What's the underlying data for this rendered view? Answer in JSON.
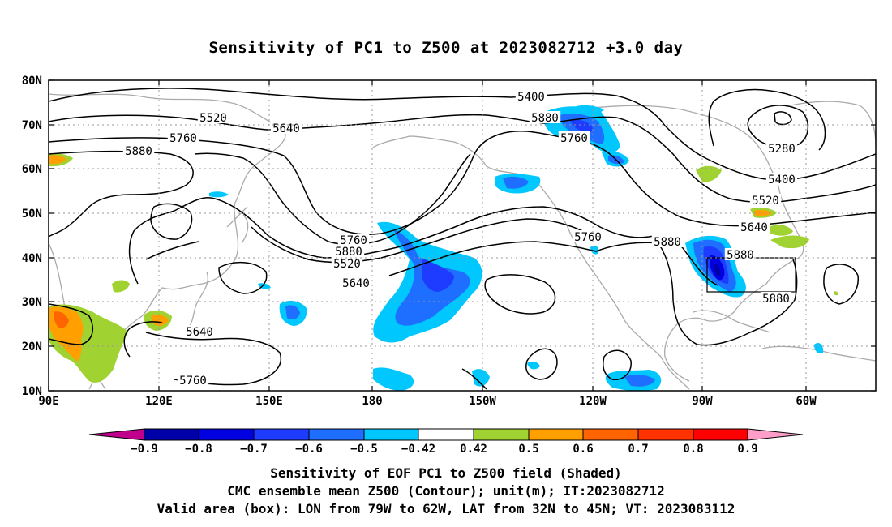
{
  "title": "Sensitivity of PC1 to Z500 at 2023082712 +3.0 day",
  "lat_labels": [
    "80N",
    "70N",
    "60N",
    "50N",
    "40N",
    "30N",
    "20N",
    "10N"
  ],
  "lon_labels": [
    "90E",
    "120E",
    "150E",
    "180",
    "150W",
    "120W",
    "90W",
    "60W"
  ],
  "contour_labels": [
    "5400",
    "5520",
    "5640",
    "5760",
    "5880",
    "5280",
    "5400",
    "5520",
    "5640",
    "5760",
    "5880",
    "5520",
    "5640",
    "5760",
    "5880",
    "5760",
    "5880",
    "5880",
    "5880",
    "5640",
    "5760"
  ],
  "colorbar": {
    "labels": [
      "-0.9",
      "-0.8",
      "-0.7",
      "-0.6",
      "-0.5",
      "-0.42",
      "0.42",
      "0.5",
      "0.6",
      "0.7",
      "0.8",
      "0.9"
    ],
    "colors": [
      "#c0008c",
      "#0000a8",
      "#0000e0",
      "#1e3cff",
      "#1e6eff",
      "#00c8ff",
      "#ffffff",
      "#a0d232",
      "#ffa000",
      "#ff6400",
      "#ff3200",
      "#ff0000",
      "#ff9ec8"
    ]
  },
  "footer": [
    "Sensitivity of EOF PC1 to Z500 field (Shaded)",
    "CMC ensemble mean Z500 (Contour); unit(m); IT:2023082712",
    "Valid area (box): LON from 79W to 62W, LAT from 32N to 45N; VT: 2023083112"
  ]
}
